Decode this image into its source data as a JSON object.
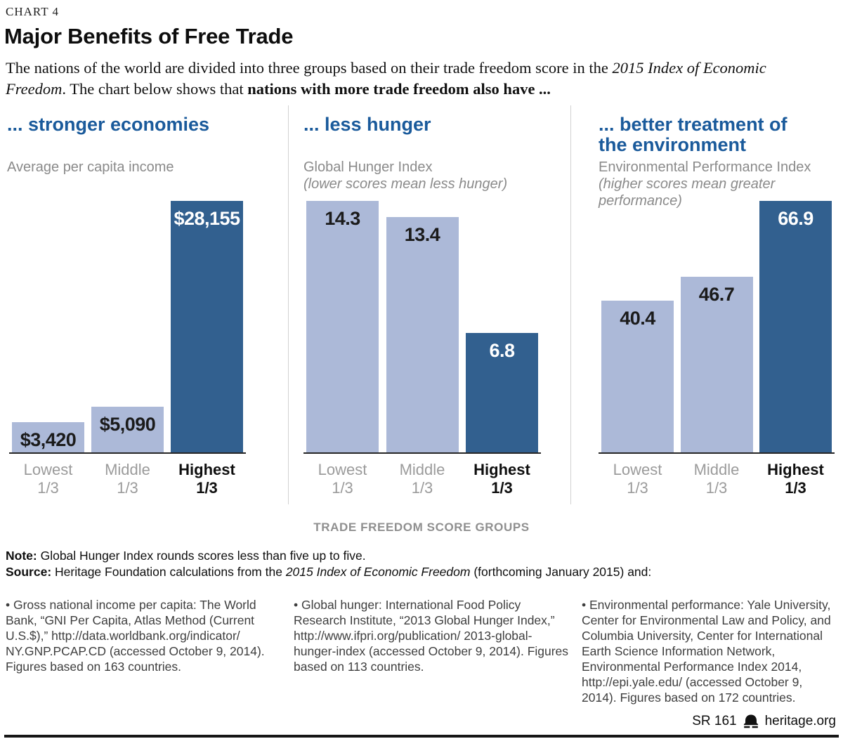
{
  "chart_label": "CHART 4",
  "title": "Major Benefits of Free Trade",
  "intro": {
    "part1": "The nations of the world are divided into three groups based on their trade freedom score in the ",
    "part2_italic": "2015 Index of Economic Freedom",
    "part3": ". The chart below shows that ",
    "part4_bold": "nations with more trade freedom also have ..."
  },
  "axis_labels": {
    "top": [
      "Lowest",
      "Middle",
      "Highest"
    ],
    "bottom": "1/3"
  },
  "group_axis_label": "TRADE FREEDOM SCORE GROUPS",
  "chart_data": [
    {
      "type": "bar",
      "title": "... stronger economies",
      "subtitle": "Average per capita income",
      "subtitle_note": "",
      "categories": [
        "Lowest 1/3",
        "Middle 1/3",
        "Highest 1/3"
      ],
      "values": [
        3420,
        5090,
        28155
      ],
      "value_labels": [
        "$3,420",
        "$5,090",
        "$28,155"
      ],
      "ylim": [
        0,
        28155
      ],
      "ymax": 28155,
      "highlight_index": 2,
      "legend": "none",
      "grid": false
    },
    {
      "type": "bar",
      "title": "... less hunger",
      "subtitle": "Global Hunger Index",
      "subtitle_note": "(lower scores mean less hunger)",
      "categories": [
        "Lowest 1/3",
        "Middle 1/3",
        "Highest 1/3"
      ],
      "values": [
        14.3,
        13.4,
        6.8
      ],
      "value_labels": [
        "14.3",
        "13.4",
        "6.8"
      ],
      "ylim": [
        0,
        14.3
      ],
      "ymax": 14.3,
      "highlight_index": 2,
      "legend": "none",
      "grid": false
    },
    {
      "type": "bar",
      "title": "... better treatment of the environment",
      "subtitle": "Environmental Performance Index",
      "subtitle_note": "(higher scores mean greater performance)",
      "categories": [
        "Lowest 1/3",
        "Middle 1/3",
        "Highest 1/3"
      ],
      "values": [
        40.4,
        46.7,
        66.9
      ],
      "value_labels": [
        "40.4",
        "46.7",
        "66.9"
      ],
      "ylim": [
        0,
        66.9
      ],
      "ymax": 66.9,
      "highlight_index": 2,
      "legend": "none",
      "grid": false
    }
  ],
  "note": {
    "label": "Note:",
    "text": " Global Hunger Index rounds scores less than five up to five."
  },
  "source": {
    "label": "Source:",
    "pre": " Heritage Foundation calculations from the ",
    "italic": "2015 Index of Economic Freedom",
    "post": " (forthcoming January 2015) and:"
  },
  "sources": [
    {
      "text": "• Gross national income per capita: The World Bank, “GNI Per Capita, Atlas Method (Current U.S.$),” http://data.worldbank.org/indicator/ NY.GNP.PCAP.CD (accessed October 9, 2014). Figures based on 163 countries."
    },
    {
      "text": "• Global hunger: International Food Policy Research Institute, “2013 Global Hunger Index,” http://www.ifpri.org/publication/ 2013-global-hunger-index (accessed October 9, 2014). Figures based on 113 countries."
    },
    {
      "text": "• Environmental performance: Yale University, Center for Environmental Law and Policy, and Columbia University, Center for International Earth Science Information Network, Environmental Performance Index 2014, http://epi.yale.edu/ (accessed October 9, 2014). Figures based on 172 countries."
    }
  ],
  "footer": {
    "doc_id": "SR 161",
    "site": "heritage.org",
    "logo_icon": "liberty-bell-icon"
  },
  "colors": {
    "bar_light": "#ACB9D8",
    "bar_dark": "#32608F",
    "accent_blue": "#1A5A9B",
    "axis_line": "#262626",
    "muted_gray": "#8A8A8A"
  }
}
